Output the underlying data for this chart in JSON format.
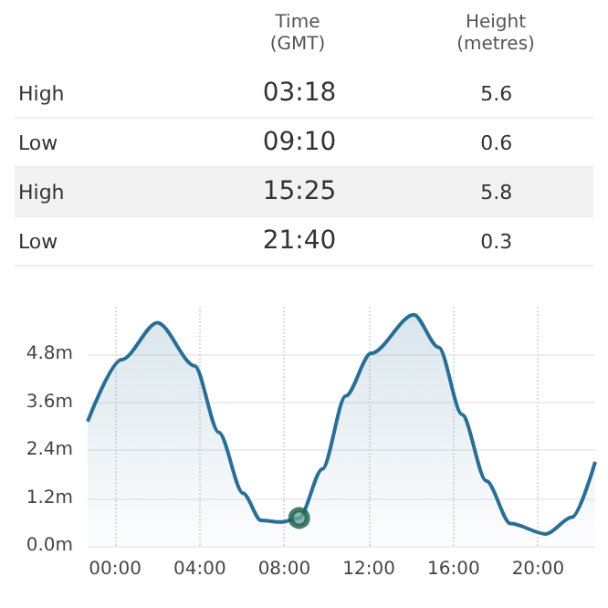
{
  "chart_data": {
    "type": "area",
    "annotations": [
      "Time\n(GMT)",
      "Height\n(metres)",
      "High",
      "03:18",
      "5.6",
      "Low",
      "09:10",
      "0.6",
      "High",
      "15:25",
      "5.8",
      "Low",
      "21:40",
      "0.3"
    ],
    "series": [
      {
        "color": "#2a6e96",
        "x": [
          -1.3,
          0.3,
          2.0,
          3.76,
          4.9,
          6.05,
          6.9,
          7.87,
          8.7,
          9.8,
          10.9,
          12.1,
          14.12,
          15.3,
          16.4,
          17.55,
          18.7,
          20.37,
          21.6,
          22.7
        ],
        "values": [
          3.12,
          4.67,
          5.6,
          4.52,
          2.85,
          1.32,
          0.64,
          0.6,
          0.7,
          1.93,
          3.76,
          4.83,
          5.8,
          4.98,
          3.3,
          1.63,
          0.56,
          0.3,
          0.72,
          2.11
        ]
      },
      {
        "type": "scatter",
        "color": "#6aa8a0",
        "x": [
          8.7
        ],
        "values": [
          0.7
        ]
      }
    ],
    "xlim": [
      -1.3,
      22.7
    ],
    "xticks": [
      {
        "value": 0,
        "label": "00:00"
      },
      {
        "value": 4,
        "label": "04:00"
      },
      {
        "value": 8,
        "label": "08:00"
      },
      {
        "value": 12,
        "label": "12:00"
      },
      {
        "value": 16,
        "label": "16:00"
      },
      {
        "value": 20,
        "label": "20:00"
      }
    ],
    "ylim": [
      0,
      6
    ],
    "yticks": [
      {
        "value": 0,
        "label": "0.0m"
      },
      {
        "value": 1.2,
        "label": "1.2m"
      },
      {
        "value": 2.4,
        "label": "2.4m"
      },
      {
        "value": 3.6,
        "label": "3.6m"
      },
      {
        "value": 4.8,
        "label": "4.8m"
      }
    ],
    "grid": true
  }
}
